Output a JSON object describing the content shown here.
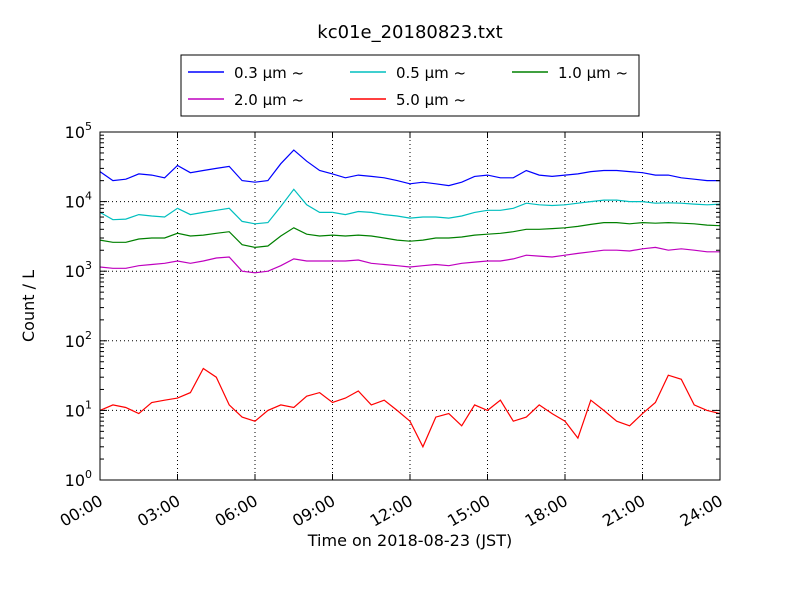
{
  "chart_data": {
    "type": "line",
    "title": "kc01e_20180823.txt",
    "xlabel": "Time on 2018-08-23 (JST)",
    "ylabel": "Count / L",
    "yscale": "log",
    "ylim": [
      1,
      100000
    ],
    "xlim": [
      "2018-08-23 00:00",
      "2018-08-24 00:00"
    ],
    "x_tick_labels": [
      "00:00",
      "03:00",
      "06:00",
      "09:00",
      "12:00",
      "15:00",
      "18:00",
      "21:00",
      "24:00"
    ],
    "y_tick_labels": [
      {
        "base": "10",
        "exp": "0"
      },
      {
        "base": "10",
        "exp": "1"
      },
      {
        "base": "10",
        "exp": "2"
      },
      {
        "base": "10",
        "exp": "3"
      },
      {
        "base": "10",
        "exp": "4"
      },
      {
        "base": "10",
        "exp": "5"
      }
    ],
    "grid": true,
    "legend_position": "top-center, above plot",
    "x": [
      "00:00",
      "00:30",
      "01:00",
      "01:30",
      "02:00",
      "02:30",
      "03:00",
      "03:30",
      "04:00",
      "04:30",
      "05:00",
      "05:30",
      "06:00",
      "06:30",
      "07:00",
      "07:30",
      "08:00",
      "08:30",
      "09:00",
      "09:30",
      "10:00",
      "10:30",
      "11:00",
      "11:30",
      "12:00",
      "12:30",
      "13:00",
      "13:30",
      "14:00",
      "14:30",
      "15:00",
      "15:30",
      "16:00",
      "16:30",
      "17:00",
      "17:30",
      "18:00",
      "18:30",
      "19:00",
      "19:30",
      "20:00",
      "20:30",
      "21:00",
      "21:30",
      "22:00",
      "22:30",
      "23:00",
      "23:30",
      "24:00"
    ],
    "series": [
      {
        "name": "0.3 μm ~",
        "color": "#0000ff",
        "values": [
          27000,
          20000,
          21000,
          25000,
          24000,
          22000,
          33000,
          26000,
          28000,
          30000,
          32000,
          20000,
          19000,
          20000,
          35000,
          55000,
          38000,
          28000,
          25000,
          22000,
          24000,
          23000,
          22000,
          20000,
          18000,
          19000,
          18000,
          17000,
          19000,
          23000,
          24000,
          22000,
          22000,
          28000,
          24000,
          23000,
          24000,
          25000,
          27000,
          28000,
          28000,
          27000,
          26000,
          24000,
          24000,
          22000,
          21000,
          20000,
          20000
        ]
      },
      {
        "name": "0.5 μm ~",
        "color": "#00bfbf",
        "values": [
          7000,
          5500,
          5600,
          6500,
          6200,
          6000,
          8000,
          6500,
          7000,
          7500,
          8000,
          5200,
          4800,
          5000,
          8500,
          15000,
          9000,
          7000,
          7000,
          6500,
          7200,
          7000,
          6500,
          6200,
          5800,
          6000,
          6000,
          5800,
          6200,
          7000,
          7500,
          7500,
          8000,
          9500,
          9000,
          8800,
          9000,
          9500,
          10000,
          10500,
          10500,
          10000,
          10000,
          9500,
          9600,
          9500,
          9200,
          9000,
          9200
        ]
      },
      {
        "name": "1.0 μm ~",
        "color": "#008000",
        "values": [
          2800,
          2600,
          2600,
          2900,
          3000,
          3000,
          3500,
          3200,
          3300,
          3500,
          3700,
          2400,
          2200,
          2300,
          3200,
          4200,
          3400,
          3200,
          3300,
          3200,
          3300,
          3200,
          3000,
          2800,
          2700,
          2800,
          3000,
          3000,
          3100,
          3300,
          3400,
          3500,
          3700,
          4000,
          4000,
          4100,
          4200,
          4400,
          4700,
          5000,
          5000,
          4800,
          5000,
          4900,
          5000,
          4900,
          4800,
          4600,
          4500
        ]
      },
      {
        "name": "2.0 μm ~",
        "color": "#bf00bf",
        "values": [
          1150,
          1100,
          1100,
          1200,
          1250,
          1300,
          1400,
          1300,
          1400,
          1550,
          1600,
          1000,
          950,
          1000,
          1200,
          1500,
          1400,
          1400,
          1400,
          1400,
          1450,
          1300,
          1250,
          1200,
          1150,
          1200,
          1250,
          1200,
          1300,
          1350,
          1400,
          1400,
          1500,
          1700,
          1650,
          1600,
          1700,
          1800,
          1900,
          2000,
          2000,
          1950,
          2100,
          2200,
          2000,
          2100,
          2000,
          1900,
          1900
        ]
      },
      {
        "name": "5.0 μm ~",
        "color": "#ff0000",
        "values": [
          10,
          12,
          11,
          9,
          13,
          14,
          15,
          18,
          40,
          30,
          12,
          8,
          7,
          10,
          12,
          11,
          16,
          18,
          13,
          15,
          19,
          12,
          14,
          10,
          7,
          3,
          8,
          9,
          6,
          12,
          10,
          14,
          7,
          8,
          12,
          9,
          7,
          4,
          14,
          10,
          7,
          6,
          9,
          13,
          32,
          28,
          12,
          10,
          9
        ]
      }
    ]
  }
}
